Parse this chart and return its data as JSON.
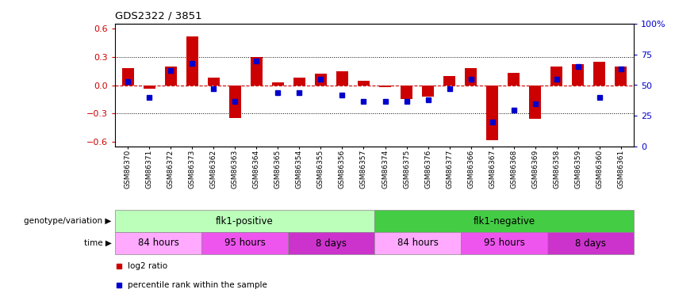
{
  "title": "GDS2322 / 3851",
  "samples": [
    "GSM86370",
    "GSM86371",
    "GSM86372",
    "GSM86373",
    "GSM86362",
    "GSM86363",
    "GSM86364",
    "GSM86365",
    "GSM86354",
    "GSM86355",
    "GSM86356",
    "GSM86357",
    "GSM86374",
    "GSM86375",
    "GSM86376",
    "GSM86377",
    "GSM86366",
    "GSM86367",
    "GSM86368",
    "GSM86369",
    "GSM86358",
    "GSM86359",
    "GSM86360",
    "GSM86361"
  ],
  "log2_ratio": [
    0.18,
    -0.04,
    0.2,
    0.52,
    0.08,
    -0.35,
    0.3,
    0.03,
    0.08,
    0.12,
    0.15,
    0.05,
    -0.02,
    -0.15,
    -0.12,
    0.1,
    0.18,
    -0.58,
    0.13,
    -0.36,
    0.2,
    0.22,
    0.25,
    0.2
  ],
  "percentile": [
    53,
    40,
    62,
    68,
    47,
    37,
    70,
    44,
    44,
    55,
    42,
    37,
    37,
    37,
    38,
    47,
    55,
    20,
    30,
    35,
    55,
    65,
    40,
    63
  ],
  "bar_color": "#cc0000",
  "dot_color": "#0000cc",
  "ylim_left": [
    -0.65,
    0.65
  ],
  "ylim_right": [
    0,
    100
  ],
  "yticks_left": [
    -0.6,
    -0.3,
    0.0,
    0.3,
    0.6
  ],
  "yticks_right": [
    0,
    25,
    50,
    75,
    100
  ],
  "ytick_labels_right": [
    "0",
    "25",
    "50",
    "75",
    "100%"
  ],
  "hlines": [
    0.3,
    -0.3
  ],
  "hline_zero": 0.0,
  "bg_color": "#ffffff",
  "genotype_groups": [
    {
      "label": "flk1-positive",
      "start": 0,
      "end": 12,
      "color": "#bbffbb"
    },
    {
      "label": "flk1-negative",
      "start": 12,
      "end": 24,
      "color": "#44cc44"
    }
  ],
  "time_groups": [
    {
      "label": "84 hours",
      "start": 0,
      "end": 4,
      "color": "#ffaaff"
    },
    {
      "label": "95 hours",
      "start": 4,
      "end": 8,
      "color": "#ee55ee"
    },
    {
      "label": "8 days",
      "start": 8,
      "end": 12,
      "color": "#cc33cc"
    },
    {
      "label": "84 hours",
      "start": 12,
      "end": 16,
      "color": "#ffaaff"
    },
    {
      "label": "95 hours",
      "start": 16,
      "end": 20,
      "color": "#ee55ee"
    },
    {
      "label": "8 days",
      "start": 20,
      "end": 24,
      "color": "#cc33cc"
    }
  ],
  "left_label": "genotype/variation",
  "time_label": "time",
  "legend_items": [
    {
      "color": "#cc0000",
      "label": "log2 ratio"
    },
    {
      "color": "#0000cc",
      "label": "percentile rank within the sample"
    }
  ]
}
